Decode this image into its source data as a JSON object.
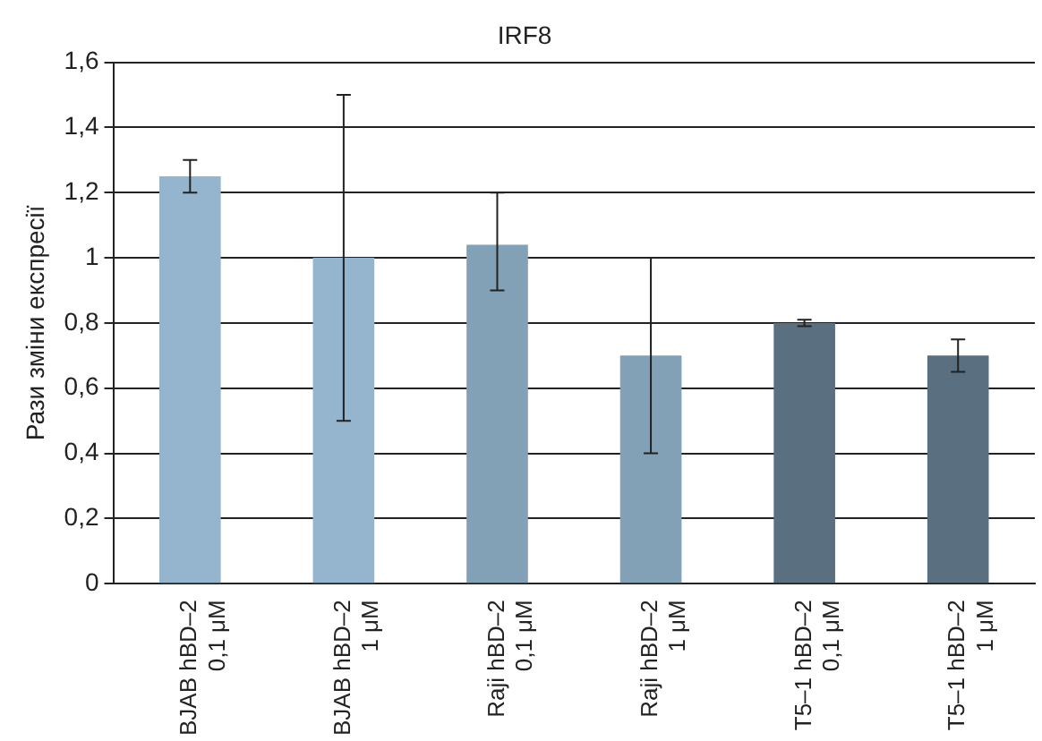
{
  "chart_data": {
    "type": "bar",
    "title": "IRF8",
    "ylabel": "Рази зміни експресії",
    "categories": [
      "BJAB hBD–2\n0,1 μM",
      "BJAB hBD–2\n1 μM",
      "Raji hBD–2\n0,1 μM",
      "Raji hBD–2\n1 μM",
      "T5–1 hBD–2\n0,1 μM",
      "T5–1 hBD–2\n1 μM"
    ],
    "values": [
      1.25,
      1.0,
      1.04,
      0.7,
      0.8,
      0.7
    ],
    "colors": [
      "#95b5cf",
      "#95b5cf",
      "#82a0b6",
      "#82a0b6",
      "#5a6f80",
      "#5a6f80"
    ],
    "errors": [
      0.05,
      0.5,
      [
        0.9,
        1.2
      ],
      0.3,
      0.01,
      0.05
    ],
    "ylim": [
      0,
      1.6
    ],
    "yticks": [
      0,
      {
        "value": 0.2,
        "label": "0,2"
      },
      {
        "value": 0.4,
        "label": "0,4"
      },
      {
        "value": 0.6,
        "label": "0,6"
      },
      {
        "value": 0.8,
        "label": "0,8"
      },
      1,
      {
        "value": 1.2,
        "label": "1,2"
      },
      {
        "value": 1.4,
        "label": "1,4"
      },
      {
        "value": 1.6,
        "label": "1,6"
      }
    ],
    "grid": "y",
    "legend": false
  }
}
